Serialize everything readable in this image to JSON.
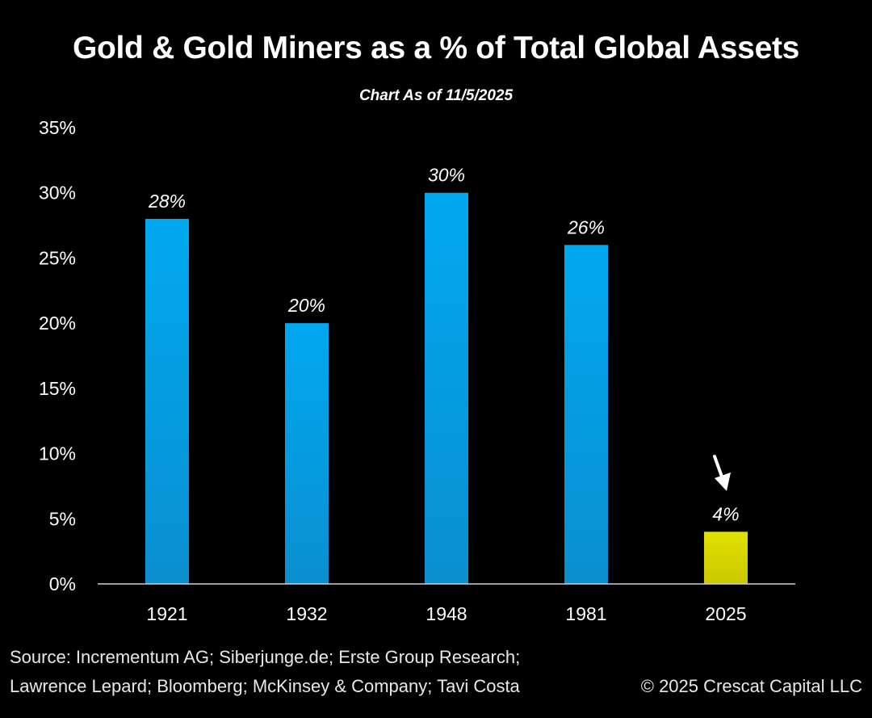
{
  "colors": {
    "background": "#000000",
    "bar": "#00a8f0",
    "highlight_bar": "#e2e000",
    "text": "#ffffff",
    "axis": "#d0d0d0"
  },
  "chart_data": {
    "type": "bar",
    "title": "Gold & Gold Miners as a % of Total Global Assets",
    "subtitle": "Chart As of 11/5/2025",
    "xlabel": "",
    "ylabel": "",
    "categories": [
      "1921",
      "1932",
      "1948",
      "1981",
      "2025"
    ],
    "values": [
      28,
      20,
      30,
      26,
      4
    ],
    "data_labels": [
      "28%",
      "20%",
      "30%",
      "26%",
      "4%"
    ],
    "highlight_index": 4,
    "annotation": "arrow pointing to 2025 bar",
    "ylim": [
      0,
      35
    ],
    "yticks": [
      0,
      5,
      10,
      15,
      20,
      25,
      30,
      35
    ],
    "ytick_labels": [
      "0%",
      "5%",
      "10%",
      "15%",
      "20%",
      "25%",
      "30%",
      "35%"
    ],
    "grid": false
  },
  "footer": {
    "source_line1": "Source: Incrementum AG; Siberjunge.de; Erste Group Research;",
    "source_line2": "Lawrence Lepard; Bloomberg; McKinsey & Company; Tavi Costa",
    "copyright": "© 2025 Crescat Capital LLC"
  }
}
